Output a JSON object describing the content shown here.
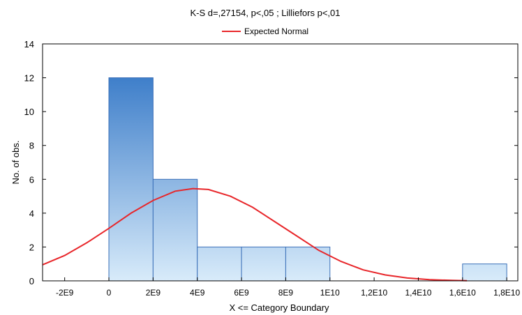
{
  "chart_data": {
    "type": "bar",
    "title": "K-S d=,27154, p<,05 ; Lilliefors p<,01",
    "xlabel": "X <= Category Boundary",
    "ylabel": "No. of obs.",
    "xlim": [
      -3000000000,
      18500000000
    ],
    "ylim": [
      0,
      14
    ],
    "x_ticks": [
      -2000000000,
      0,
      2000000000,
      4000000000,
      6000000000,
      8000000000,
      10000000000,
      12000000000,
      14000000000,
      16000000000,
      18000000000
    ],
    "x_tick_labels": [
      "-2E9",
      "0",
      "2E9",
      "4E9",
      "6E9",
      "8E9",
      "1E10",
      "1,2E10",
      "1,4E10",
      "1,6E10",
      "1,8E10"
    ],
    "y_ticks": [
      0,
      2,
      4,
      6,
      8,
      10,
      12,
      14
    ],
    "y_tick_labels": [
      "0",
      "2",
      "4",
      "6",
      "8",
      "10",
      "12",
      "14"
    ],
    "bins": [
      {
        "from": 0,
        "to": 2000000000,
        "count": 12
      },
      {
        "from": 2000000000,
        "to": 4000000000,
        "count": 6
      },
      {
        "from": 4000000000,
        "to": 6000000000,
        "count": 2
      },
      {
        "from": 6000000000,
        "to": 8000000000,
        "count": 2
      },
      {
        "from": 8000000000,
        "to": 10000000000,
        "count": 2
      },
      {
        "from": 10000000000,
        "to": 12000000000,
        "count": 0
      },
      {
        "from": 12000000000,
        "to": 14000000000,
        "count": 0
      },
      {
        "from": 14000000000,
        "to": 16000000000,
        "count": 0
      },
      {
        "from": 16000000000,
        "to": 18000000000,
        "count": 1
      }
    ],
    "series": [
      {
        "name": "Expected Normal",
        "type": "line",
        "color": "#e8262a",
        "x": [
          -3000000000,
          -2000000000,
          -1000000000,
          0,
          1000000000,
          2000000000,
          3000000000,
          3800000000,
          4500000000,
          5500000000,
          6500000000,
          7500000000,
          8500000000,
          9500000000,
          10500000000,
          11500000000,
          12500000000,
          13500000000,
          14500000000,
          15500000000,
          16200000000
        ],
        "y": [
          0.95,
          1.5,
          2.25,
          3.1,
          4.0,
          4.75,
          5.3,
          5.45,
          5.4,
          5.0,
          4.35,
          3.5,
          2.65,
          1.8,
          1.15,
          0.65,
          0.35,
          0.17,
          0.07,
          0.03,
          0.01
        ]
      }
    ],
    "legend": "top-center",
    "grid": false,
    "colors": {
      "bar_top": "#3f7fca",
      "bar_bottom": "#d8ebfa",
      "bar_edge": "#3a6fb8",
      "curve": "#e8262a"
    }
  }
}
